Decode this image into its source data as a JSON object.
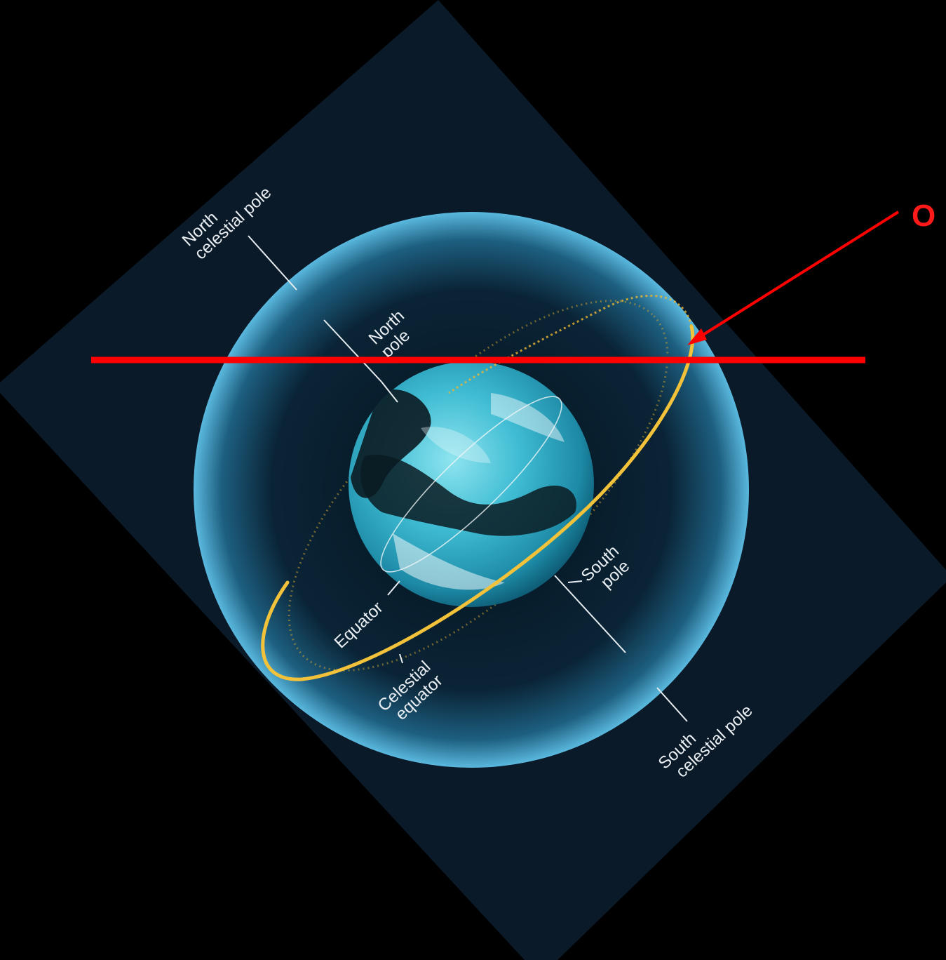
{
  "labels": {
    "north_celestial_pole": [
      "North",
      "celestial pole"
    ],
    "north_pole": [
      "North",
      "pole"
    ],
    "south_pole": [
      "South",
      "pole"
    ],
    "equator": "Equator",
    "celestial_equator": [
      "Celestial",
      "equator"
    ],
    "south_celestial_pole": [
      "South",
      "celestial pole"
    ]
  },
  "annotation": {
    "text": "O",
    "color": "#ff0000"
  },
  "colors": {
    "background": "#000000",
    "card": "#0a1a2a",
    "sphere_edge": "#4fb3dc",
    "earth": "#3fc0d8",
    "celestial_equator": "#f2c23a",
    "annotation": "#ff0000"
  }
}
